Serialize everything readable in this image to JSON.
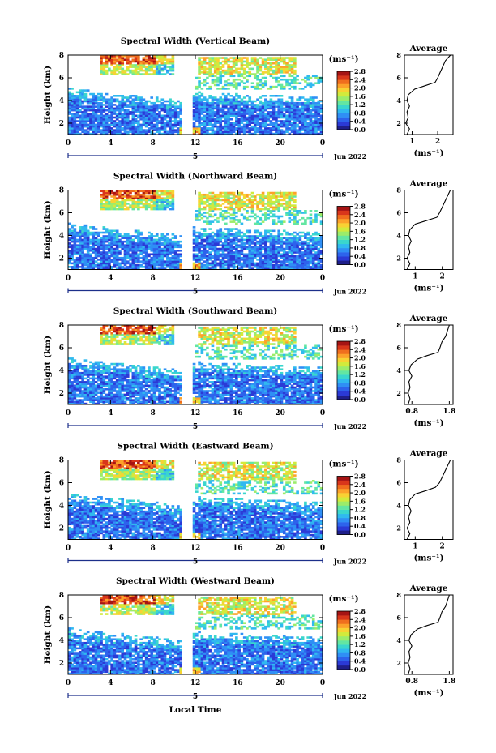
{
  "figure": {
    "xlabel": "Local Time",
    "ylabel": "Height (km)",
    "date_label": "Jun 2022",
    "day_marker": "5",
    "unit_label": "(ms⁻¹)",
    "avg_title": "Average",
    "avg_xlabel": "(ms⁻¹)",
    "colormap": [
      "#1f1f8a",
      "#2b3ad6",
      "#2d63ec",
      "#2f8ff5",
      "#30b9ef",
      "#3ad6cd",
      "#63e6a2",
      "#9cec6a",
      "#d2ea3c",
      "#f8d233",
      "#fca22a",
      "#f06e1e",
      "#d9361b",
      "#a61414"
    ]
  },
  "chart_data": [
    {
      "type": "heatmap",
      "title": "Spectral Width (Vertical Beam)",
      "x_ticks": [
        "0",
        "4",
        "8",
        "12",
        "16",
        "20",
        "0"
      ],
      "xlim": [
        0,
        24
      ],
      "y_ticks": [
        "2",
        "4",
        "6",
        "8"
      ],
      "ylim": [
        1,
        8
      ],
      "colorbar_ticks": [
        "0.0",
        "0.4",
        "0.8",
        "1.2",
        "1.6",
        "2.0",
        "2.4",
        "2.8"
      ],
      "clim": [
        0,
        2.8
      ],
      "gap_hours": [
        10.7,
        11.7
      ],
      "avg": {
        "x_ticks": [
          "1",
          "2"
        ],
        "xlim": [
          0.7,
          2.6
        ],
        "y_ticks": [
          "2",
          "4",
          "6",
          "8"
        ],
        "ylim": [
          1,
          8
        ],
        "profile": [
          [
            1.0,
            0.8
          ],
          [
            1.5,
            0.9
          ],
          [
            2.0,
            0.75
          ],
          [
            2.5,
            0.85
          ],
          [
            3.0,
            0.8
          ],
          [
            3.5,
            0.9
          ],
          [
            4.0,
            0.8
          ],
          [
            4.5,
            0.85
          ],
          [
            5.0,
            1.1
          ],
          [
            5.3,
            1.5
          ],
          [
            5.6,
            1.9
          ],
          [
            6.0,
            2.0
          ],
          [
            6.5,
            2.1
          ],
          [
            7.0,
            2.2
          ],
          [
            7.5,
            2.3
          ],
          [
            8.0,
            2.5
          ]
        ]
      }
    },
    {
      "type": "heatmap",
      "title": "Spectral Width (Northward Beam)",
      "x_ticks": [
        "0",
        "4",
        "8",
        "12",
        "16",
        "20",
        "0"
      ],
      "xlim": [
        0,
        24
      ],
      "y_ticks": [
        "2",
        "4",
        "6",
        "8"
      ],
      "ylim": [
        1,
        8
      ],
      "colorbar_ticks": [
        "0.0",
        "0.4",
        "0.8",
        "1.2",
        "1.6",
        "2.0",
        "2.4",
        "2.8"
      ],
      "clim": [
        0,
        2.8
      ],
      "gap_hours": [
        10.7,
        11.7
      ],
      "avg": {
        "x_ticks": [
          "1",
          "2"
        ],
        "xlim": [
          0.6,
          2.4
        ],
        "y_ticks": [
          "2",
          "4",
          "6",
          "8"
        ],
        "ylim": [
          1,
          8
        ],
        "profile": [
          [
            1.0,
            0.7
          ],
          [
            1.5,
            0.8
          ],
          [
            2.0,
            0.7
          ],
          [
            2.5,
            0.8
          ],
          [
            3.0,
            0.75
          ],
          [
            3.5,
            0.85
          ],
          [
            4.0,
            0.75
          ],
          [
            4.5,
            0.8
          ],
          [
            5.0,
            1.0
          ],
          [
            5.3,
            1.4
          ],
          [
            5.6,
            1.8
          ],
          [
            6.0,
            1.9
          ],
          [
            6.5,
            2.0
          ],
          [
            7.0,
            2.1
          ],
          [
            7.5,
            2.2
          ],
          [
            8.0,
            2.3
          ]
        ]
      }
    },
    {
      "type": "heatmap",
      "title": "Spectral Width (Southward Beam)",
      "x_ticks": [
        "0",
        "4",
        "8",
        "12",
        "16",
        "20",
        "0"
      ],
      "xlim": [
        0,
        24
      ],
      "y_ticks": [
        "2",
        "4",
        "6",
        "8"
      ],
      "ylim": [
        1,
        8
      ],
      "colorbar_ticks": [
        "0.0",
        "0.4",
        "0.8",
        "1.2",
        "1.6",
        "2.0",
        "2.4",
        "2.8"
      ],
      "clim": [
        0,
        2.8
      ],
      "gap_hours": [
        10.7,
        11.7
      ],
      "avg": {
        "x_ticks": [
          "0.8",
          "1.8"
        ],
        "xlim": [
          0.6,
          1.9
        ],
        "y_ticks": [
          "2",
          "4",
          "6",
          "8"
        ],
        "ylim": [
          1,
          8
        ],
        "profile": [
          [
            1.0,
            0.7
          ],
          [
            1.5,
            0.75
          ],
          [
            2.0,
            0.7
          ],
          [
            2.5,
            0.75
          ],
          [
            3.0,
            0.72
          ],
          [
            3.5,
            0.8
          ],
          [
            4.0,
            0.72
          ],
          [
            4.5,
            0.78
          ],
          [
            5.0,
            0.95
          ],
          [
            5.3,
            1.2
          ],
          [
            5.6,
            1.5
          ],
          [
            6.0,
            1.55
          ],
          [
            6.5,
            1.6
          ],
          [
            7.0,
            1.7
          ],
          [
            7.5,
            1.75
          ],
          [
            8.0,
            1.8
          ]
        ]
      }
    },
    {
      "type": "heatmap",
      "title": "Spectral Width (Eastward Beam)",
      "x_ticks": [
        "0",
        "4",
        "8",
        "12",
        "16",
        "20",
        "0"
      ],
      "xlim": [
        0,
        24
      ],
      "y_ticks": [
        "2",
        "4",
        "6",
        "8"
      ],
      "ylim": [
        1,
        8
      ],
      "colorbar_ticks": [
        "0.0",
        "0.4",
        "0.8",
        "1.2",
        "1.6",
        "2.0",
        "2.4",
        "2.8"
      ],
      "clim": [
        0,
        2.8
      ],
      "gap_hours": [
        10.7,
        11.7
      ],
      "avg": {
        "x_ticks": [
          "1",
          "2"
        ],
        "xlim": [
          0.6,
          2.4
        ],
        "y_ticks": [
          "2",
          "4",
          "6",
          "8"
        ],
        "ylim": [
          1,
          8
        ],
        "profile": [
          [
            1.0,
            0.7
          ],
          [
            1.5,
            0.8
          ],
          [
            2.0,
            0.7
          ],
          [
            2.5,
            0.8
          ],
          [
            3.0,
            0.75
          ],
          [
            3.5,
            0.85
          ],
          [
            4.0,
            0.75
          ],
          [
            4.5,
            0.8
          ],
          [
            5.0,
            1.0
          ],
          [
            5.3,
            1.4
          ],
          [
            5.6,
            1.75
          ],
          [
            6.0,
            1.9
          ],
          [
            6.5,
            2.0
          ],
          [
            7.0,
            2.1
          ],
          [
            7.5,
            2.2
          ],
          [
            8.0,
            2.3
          ]
        ]
      }
    },
    {
      "type": "heatmap",
      "title": "Spectral Width (Westward Beam)",
      "x_ticks": [
        "0",
        "4",
        "8",
        "12",
        "16",
        "20",
        "0"
      ],
      "xlim": [
        0,
        24
      ],
      "y_ticks": [
        "2",
        "4",
        "6",
        "8"
      ],
      "ylim": [
        1,
        8
      ],
      "colorbar_ticks": [
        "0.0",
        "0.4",
        "0.8",
        "1.2",
        "1.6",
        "2.0",
        "2.4",
        "2.8"
      ],
      "clim": [
        0,
        2.8
      ],
      "gap_hours": [
        10.7,
        11.7
      ],
      "avg": {
        "x_ticks": [
          "0.8",
          "1.8"
        ],
        "xlim": [
          0.6,
          1.9
        ],
        "y_ticks": [
          "2",
          "4",
          "6",
          "8"
        ],
        "ylim": [
          1,
          8
        ],
        "profile": [
          [
            1.0,
            0.7
          ],
          [
            1.5,
            0.75
          ],
          [
            2.0,
            0.7
          ],
          [
            2.5,
            0.75
          ],
          [
            3.0,
            0.72
          ],
          [
            3.5,
            0.8
          ],
          [
            4.0,
            0.72
          ],
          [
            4.5,
            0.78
          ],
          [
            5.0,
            0.95
          ],
          [
            5.3,
            1.2
          ],
          [
            5.6,
            1.5
          ],
          [
            6.0,
            1.55
          ],
          [
            6.5,
            1.6
          ],
          [
            7.0,
            1.7
          ],
          [
            7.5,
            1.75
          ],
          [
            8.0,
            1.8
          ]
        ]
      }
    }
  ]
}
